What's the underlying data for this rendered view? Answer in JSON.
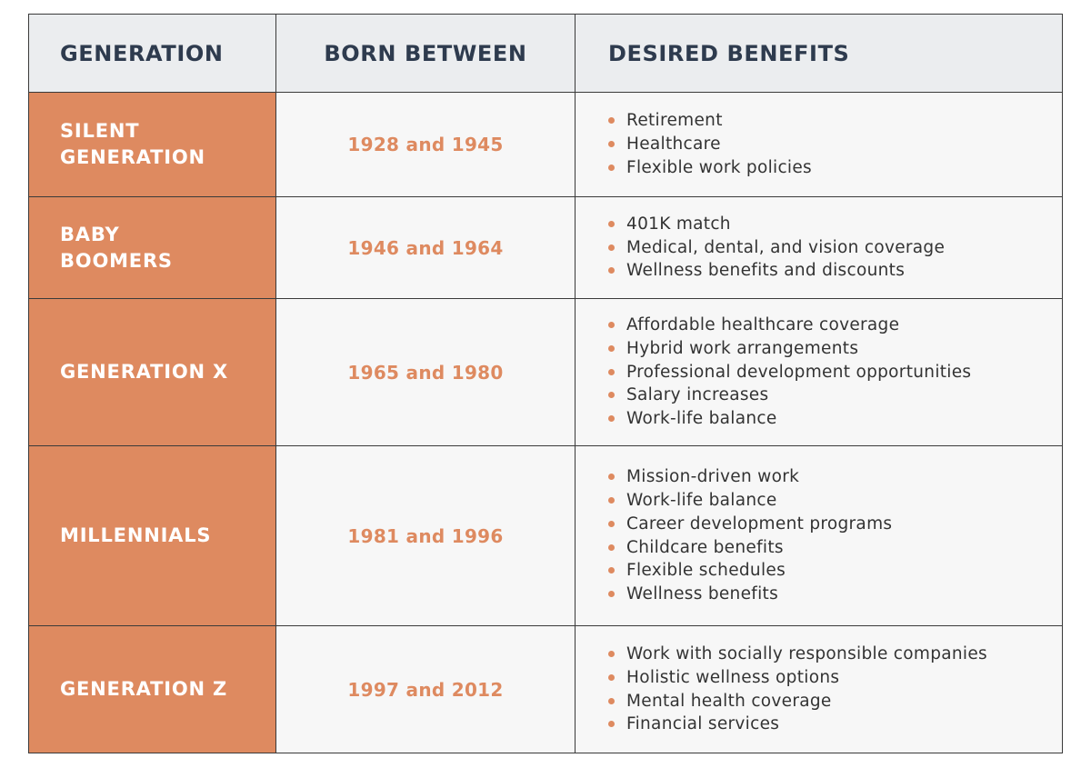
{
  "colors": {
    "accent": "#de8a60",
    "header_bg": "#ebedef",
    "header_text": "#2e3b4e",
    "cell_bg": "#f7f7f7",
    "body_text": "#333333",
    "border": "#3a3a3a"
  },
  "table": {
    "headers": [
      "GENERATION",
      "BORN BETWEEN",
      "DESIRED BENEFITS"
    ],
    "rows": [
      {
        "generation": "SILENT\nGENERATION",
        "born": "1928 and 1945",
        "benefits": [
          "Retirement",
          "Healthcare",
          "Flexible work policies"
        ]
      },
      {
        "generation": "BABY\nBOOMERS",
        "born": "1946 and 1964",
        "benefits": [
          "401K match",
          "Medical, dental, and vision coverage",
          "Wellness benefits and discounts"
        ]
      },
      {
        "generation": "GENERATION X",
        "born": "1965 and 1980",
        "benefits": [
          "Affordable healthcare coverage",
          "Hybrid work arrangements",
          "Professional development opportunities",
          "Salary increases",
          "Work-life balance"
        ]
      },
      {
        "generation": "MILLENNIALS",
        "born": "1981 and 1996",
        "benefits": [
          "Mission-driven work",
          "Work-life balance",
          "Career development programs",
          "Childcare benefits",
          "Flexible schedules",
          "Wellness benefits"
        ]
      },
      {
        "generation": "GENERATION Z",
        "born": "1997 and 2012",
        "benefits": [
          "Work with socially responsible companies",
          "Holistic wellness options",
          "Mental health coverage",
          "Financial services"
        ]
      }
    ]
  }
}
